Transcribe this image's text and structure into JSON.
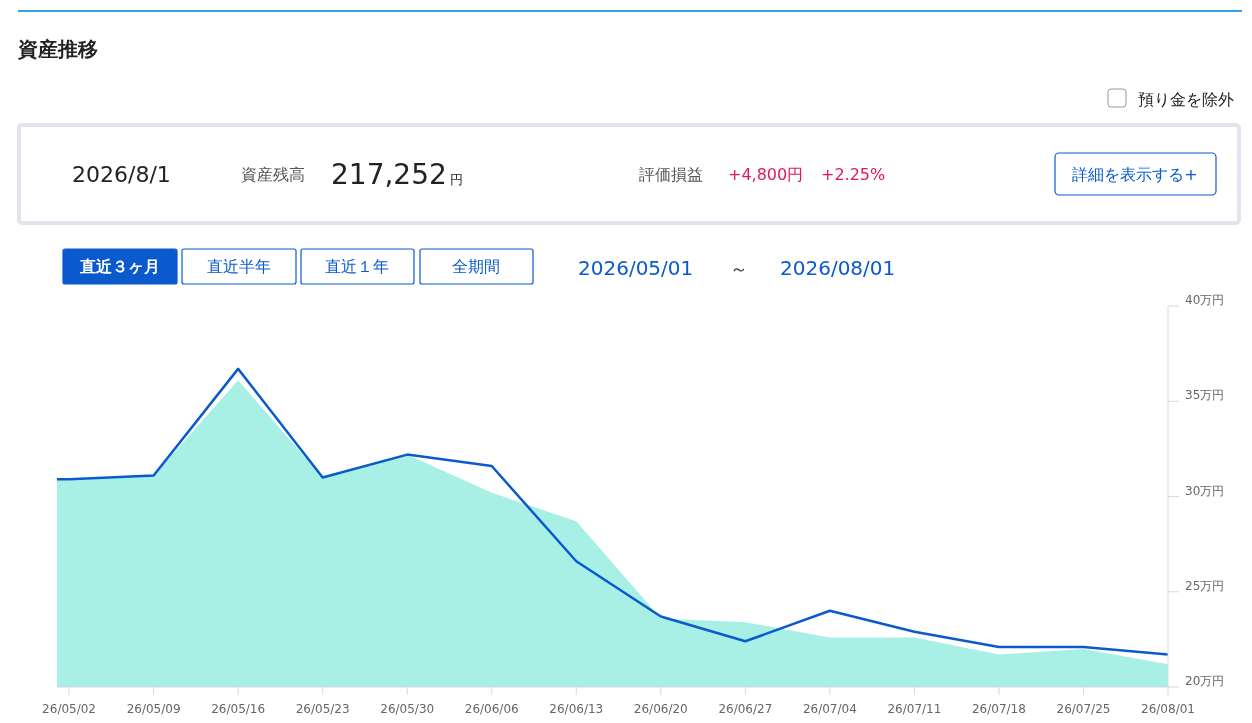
{
  "chart_data": {
    "type": "area",
    "title": "資産推移",
    "annotations": [
      "預り金を除外",
      "2026/8/1",
      "資産残高",
      "217,252",
      "円",
      "評価損益",
      "+4,800円",
      "+2.25%",
      "詳細を表示する+",
      "直近３ヶ月",
      "直近半年",
      "直近１年",
      "全期間",
      "2026/05/01",
      "～",
      "2026/08/01"
    ],
    "x": [
      "2026-05-01",
      "2026-05-02",
      "2026-05-09",
      "2026-05-16",
      "2026-05-23",
      "2026-05-30",
      "2026-06-06",
      "2026-06-13",
      "2026-06-20",
      "2026-06-27",
      "2026-07-04",
      "2026-07-11",
      "2026-07-18",
      "2026-07-25",
      "2026-08-01"
    ],
    "series": [
      {
        "color": "#a8f0e6",
        "values": [
          30.9,
          30.9,
          31.1,
          36.1,
          31.0,
          32.2,
          30.2,
          28.7,
          23.6,
          23.4,
          22.6,
          22.6,
          21.7,
          22.0,
          21.2
        ]
      },
      {
        "type": "line",
        "color": "#0a5acd",
        "values": [
          30.9,
          30.9,
          31.1,
          36.7,
          31.0,
          32.2,
          31.6,
          26.6,
          23.7,
          22.4,
          24.0,
          22.9,
          22.1,
          22.1,
          21.7
        ]
      }
    ],
    "xlim": [
      "2026-05-01",
      "2026-08-01"
    ],
    "xticks": [
      {
        "value": "2026-05-02",
        "label": "26/05/02"
      },
      {
        "value": "2026-05-09",
        "label": "26/05/09"
      },
      {
        "value": "2026-05-16",
        "label": "26/05/16"
      },
      {
        "value": "2026-05-23",
        "label": "26/05/23"
      },
      {
        "value": "2026-05-30",
        "label": "26/05/30"
      },
      {
        "value": "2026-06-06",
        "label": "26/06/06"
      },
      {
        "value": "2026-06-13",
        "label": "26/06/13"
      },
      {
        "value": "2026-06-20",
        "label": "26/06/20"
      },
      {
        "value": "2026-06-27",
        "label": "26/06/27"
      },
      {
        "value": "2026-07-04",
        "label": "26/07/04"
      },
      {
        "value": "2026-07-11",
        "label": "26/07/11"
      },
      {
        "value": "2026-07-18",
        "label": "26/07/18"
      },
      {
        "value": "2026-07-25",
        "label": "26/07/25"
      },
      {
        "value": "2026-08-01",
        "label": "26/08/01"
      }
    ],
    "ylim": [
      20,
      40
    ],
    "yticks": [
      {
        "value": 20,
        "label": "20万円"
      },
      {
        "value": 25,
        "label": "25万円"
      },
      {
        "value": 30,
        "label": "30万円"
      },
      {
        "value": 35,
        "label": "35万円"
      },
      {
        "value": 40,
        "label": "40万円"
      }
    ],
    "grid": false
  }
}
